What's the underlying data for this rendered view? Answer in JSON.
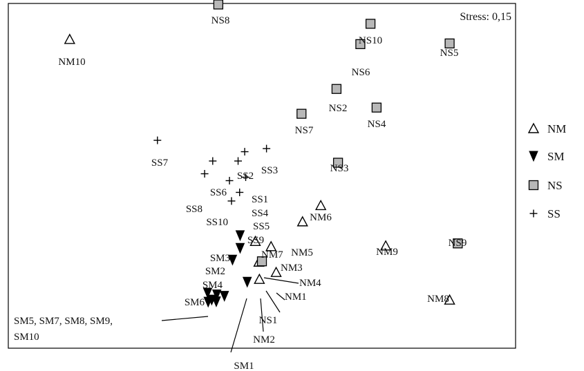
{
  "chart_data": {
    "type": "scatter",
    "title": "",
    "xlabel": "",
    "ylabel": "",
    "xlim": [
      0,
      100
    ],
    "ylim": [
      0,
      100
    ],
    "grid": false,
    "legend_position": "right",
    "annotation": "Stress: 0,15",
    "series": [
      {
        "name": "NM",
        "marker": "triangle-open",
        "color": "#000000",
        "points": [
          {
            "label": "NM1",
            "x": 52.8,
            "y": 22.0
          },
          {
            "label": "NM2",
            "x": 49.5,
            "y": 20.0
          },
          {
            "label": "NM3",
            "x": 51.8,
            "y": 29.5
          },
          {
            "label": "NM4",
            "x": 49.4,
            "y": 25.0
          },
          {
            "label": "NM5",
            "x": 58.0,
            "y": 36.7
          },
          {
            "label": "NM6",
            "x": 61.6,
            "y": 41.4
          },
          {
            "label": "NM7",
            "x": 48.7,
            "y": 31.0
          },
          {
            "label": "NM8",
            "x": 87.0,
            "y": 14.0
          },
          {
            "label": "NM9",
            "x": 74.4,
            "y": 29.7
          },
          {
            "label": "NM10",
            "x": 12.1,
            "y": 89.6
          }
        ]
      },
      {
        "name": "SM",
        "marker": "triangle-filled-down",
        "color": "#000000",
        "points": [
          {
            "label": "SM1",
            "x": 47.1,
            "y": 19.2
          },
          {
            "label": "SM2",
            "x": 45.7,
            "y": 29.0
          },
          {
            "label": "SM3",
            "x": 45.7,
            "y": 32.7
          },
          {
            "label": "SM4",
            "x": 44.2,
            "y": 25.6
          },
          {
            "label": "SM5",
            "x": 39.4,
            "y": 13.4
          },
          {
            "label": "SM6",
            "x": 39.3,
            "y": 16.0
          },
          {
            "label": "SM7",
            "x": 40.1,
            "y": 14.0
          },
          {
            "label": "SM8",
            "x": 41.0,
            "y": 13.5
          },
          {
            "label": "SM9",
            "x": 42.6,
            "y": 15.1
          },
          {
            "label": "SM10",
            "x": 41.1,
            "y": 15.5
          }
        ]
      },
      {
        "name": "NS",
        "marker": "square-gray",
        "color": "#b8b8b8",
        "points": [
          {
            "label": "NS1",
            "x": 50.0,
            "y": 25.2
          },
          {
            "label": "NS2",
            "x": 64.7,
            "y": 75.2
          },
          {
            "label": "NS3",
            "x": 65.0,
            "y": 53.8
          },
          {
            "label": "NS4",
            "x": 72.6,
            "y": 69.8
          },
          {
            "label": "NS5",
            "x": 87.0,
            "y": 88.4
          },
          {
            "label": "NS6",
            "x": 69.4,
            "y": 88.2
          },
          {
            "label": "NS7",
            "x": 57.8,
            "y": 68.0
          },
          {
            "label": "NS8",
            "x": 41.4,
            "y": 99.7
          },
          {
            "label": "NS9",
            "x": 88.6,
            "y": 30.4
          },
          {
            "label": "NS10",
            "x": 71.4,
            "y": 94.1
          }
        ]
      },
      {
        "name": "SS",
        "marker": "plus",
        "color": "#000000",
        "points": [
          {
            "label": "SS1",
            "x": 45.3,
            "y": 54.3
          },
          {
            "label": "SS2",
            "x": 46.6,
            "y": 57.0
          },
          {
            "label": "SS3",
            "x": 50.9,
            "y": 57.9
          },
          {
            "label": "SS4",
            "x": 46.8,
            "y": 49.6
          },
          {
            "label": "SS5",
            "x": 45.6,
            "y": 45.2
          },
          {
            "label": "SS6",
            "x": 40.3,
            "y": 54.3
          },
          {
            "label": "SS7",
            "x": 29.4,
            "y": 60.3
          },
          {
            "label": "SS8",
            "x": 38.7,
            "y": 50.6
          },
          {
            "label": "SS9",
            "x": 44.0,
            "y": 42.7
          },
          {
            "label": "SS10",
            "x": 43.6,
            "y": 48.6
          }
        ]
      }
    ],
    "grouped_label": "SM5, SM7, SM8, SM9, SM10"
  }
}
